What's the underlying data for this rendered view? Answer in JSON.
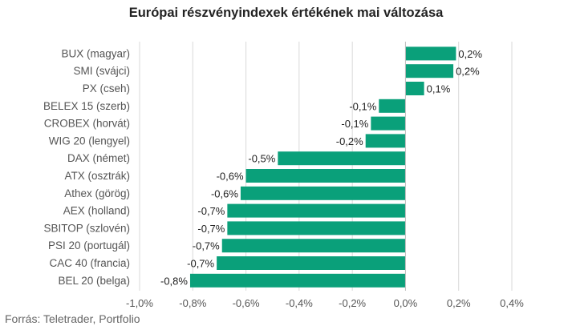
{
  "chart_data": {
    "type": "bar",
    "orientation": "horizontal",
    "title": "Európai részvényindexek értékének mai változása",
    "source": "Forrás: Teletrader, Portfolio",
    "categories": [
      "BUX (magyar)",
      "SMI (svájci)",
      "PX (cseh)",
      "BELEX 15 (szerb)",
      "CROBEX (horvát)",
      "WIG 20 (lengyel)",
      "DAX (német)",
      "ATX (osztrák)",
      "Athex (görög)",
      "AEX (holland)",
      "SBITOP (szlovén)",
      "PSI 20 (portugál)",
      "CAC 40 (francia)",
      "BEL 20 (belga)"
    ],
    "values": [
      0.19,
      0.18,
      0.07,
      -0.1,
      -0.13,
      -0.15,
      -0.48,
      -0.6,
      -0.62,
      -0.67,
      -0.67,
      -0.69,
      -0.71,
      -0.81
    ],
    "value_labels": [
      "0,2%",
      "0,2%",
      "0,1%",
      "-0,1%",
      "-0,1%",
      "-0,2%",
      "-0,5%",
      "-0,6%",
      "-0,6%",
      "-0,7%",
      "-0,7%",
      "-0,7%",
      "-0,7%",
      "-0,8%"
    ],
    "xlim": [
      -1.0,
      0.4
    ],
    "ticks": [
      -1.0,
      -0.8,
      -0.6,
      -0.4,
      -0.2,
      0.0,
      0.2,
      0.4
    ],
    "tick_labels": [
      "-1,0%",
      "-0,8%",
      "-0,6%",
      "-0,4%",
      "-0,2%",
      "0,0%",
      "0,2%",
      "0,4%"
    ],
    "grid": true,
    "bar_color": "#0aa07a"
  }
}
